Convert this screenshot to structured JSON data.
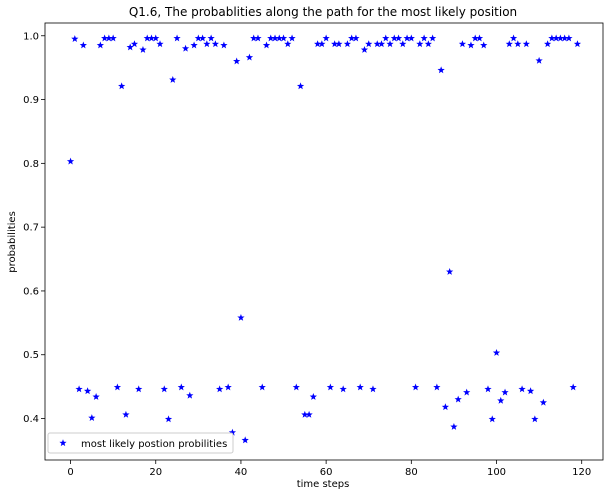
{
  "chart_data": {
    "type": "scatter",
    "title": "Q1.6, The probablities along the path for the most likely position",
    "xlabel": "time steps",
    "ylabel": "probabilities",
    "xlim": [
      -6,
      125
    ],
    "ylim": [
      0.335,
      1.02
    ],
    "xticks": [
      0,
      20,
      40,
      60,
      80,
      100,
      120
    ],
    "yticks": [
      0.4,
      0.5,
      0.6,
      0.7,
      0.8,
      0.9,
      1.0
    ],
    "xtick_labels": [
      "0",
      "20",
      "40",
      "60",
      "80",
      "100",
      "120"
    ],
    "ytick_labels": [
      "0.4",
      "0.5",
      "0.6",
      "0.7",
      "0.8",
      "0.9",
      "1.0"
    ],
    "grid": false,
    "legend_position": "lower-left",
    "series": [
      {
        "name": "most likely postion probilities",
        "color": "#0000ff",
        "marker": "star",
        "x": [
          0,
          1,
          2,
          3,
          4,
          5,
          6,
          7,
          8,
          9,
          10,
          11,
          12,
          13,
          14,
          15,
          16,
          17,
          18,
          19,
          20,
          21,
          22,
          23,
          24,
          25,
          26,
          27,
          28,
          29,
          30,
          31,
          32,
          33,
          34,
          35,
          36,
          37,
          38,
          39,
          40,
          41,
          42,
          43,
          44,
          45,
          46,
          47,
          48,
          49,
          50,
          51,
          52,
          53,
          54,
          55,
          56,
          57,
          58,
          59,
          60,
          61,
          62,
          63,
          64,
          65,
          66,
          67,
          68,
          69,
          70,
          71,
          72,
          73,
          74,
          75,
          76,
          77,
          78,
          79,
          80,
          81,
          82,
          83,
          84,
          85,
          86,
          87,
          88,
          89,
          90,
          91,
          92,
          93,
          94,
          95,
          96,
          97,
          98,
          99,
          100,
          101,
          102,
          103,
          104,
          105,
          106,
          107,
          108,
          109,
          110,
          111,
          112,
          113,
          114,
          115,
          116,
          117,
          118,
          119
        ],
        "y": [
          0.803,
          0.995,
          0.446,
          0.985,
          0.443,
          0.401,
          0.434,
          0.985,
          0.996,
          0.996,
          0.996,
          0.449,
          0.921,
          0.406,
          0.982,
          0.987,
          0.446,
          0.978,
          0.996,
          0.996,
          0.996,
          0.987,
          0.446,
          0.399,
          0.931,
          0.996,
          0.449,
          0.98,
          0.436,
          0.985,
          0.996,
          0.996,
          0.987,
          0.996,
          0.987,
          0.446,
          0.985,
          0.449,
          0.378,
          0.96,
          0.558,
          0.366,
          0.966,
          0.996,
          0.996,
          0.449,
          0.985,
          0.996,
          0.996,
          0.996,
          0.996,
          0.987,
          0.996,
          0.449,
          0.921,
          0.406,
          0.406,
          0.434,
          0.987,
          0.987,
          0.996,
          0.449,
          0.987,
          0.987,
          0.446,
          0.987,
          0.996,
          0.996,
          0.449,
          0.978,
          0.987,
          0.446,
          0.987,
          0.987,
          0.996,
          0.987,
          0.996,
          0.996,
          0.987,
          0.996,
          0.996,
          0.449,
          0.987,
          0.996,
          0.987,
          0.996,
          0.449,
          0.946,
          0.418,
          0.63,
          0.387,
          0.43,
          0.987,
          0.441,
          0.985,
          0.996,
          0.996,
          0.985,
          0.446,
          0.399,
          0.503,
          0.428,
          0.441,
          0.987,
          0.996,
          0.987,
          0.446,
          0.987,
          0.443,
          0.399,
          0.961,
          0.425,
          0.987,
          0.996,
          0.996,
          0.996,
          0.996,
          0.996,
          0.449,
          0.987
        ]
      }
    ]
  }
}
